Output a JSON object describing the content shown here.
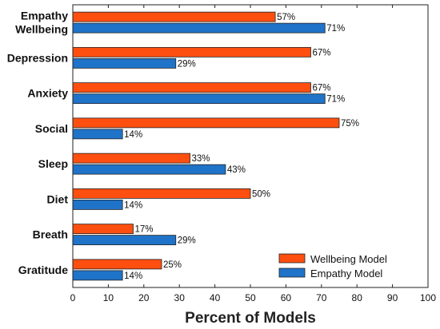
{
  "chart_data": {
    "type": "bar",
    "orientation": "horizontal",
    "categories": [
      [
        "Empathy",
        "Wellbeing"
      ],
      [
        "Depression"
      ],
      [
        "Anxiety"
      ],
      [
        "Social"
      ],
      [
        "Sleep"
      ],
      [
        "Diet"
      ],
      [
        "Breath"
      ],
      [
        "Gratitude"
      ]
    ],
    "series": [
      {
        "name": "Wellbeing Model",
        "color": "#ff4f10",
        "values": [
          57,
          67,
          67,
          75,
          33,
          50,
          17,
          25
        ],
        "labels": [
          "57%",
          "67%",
          "67%",
          "75%",
          "33%",
          "50%",
          "17%",
          "25%"
        ]
      },
      {
        "name": "Empathy Model",
        "color": "#1f73c8",
        "values": [
          71,
          29,
          71,
          14,
          43,
          14,
          29,
          14
        ],
        "labels": [
          "71%",
          "29%",
          "71%",
          "14%",
          "43%",
          "14%",
          "29%",
          "14%"
        ]
      }
    ],
    "xlabel": "Percent of Models",
    "ylabel": "",
    "xlim": [
      0,
      100
    ],
    "xticks": [
      0,
      10,
      20,
      30,
      40,
      50,
      60,
      70,
      80,
      90,
      100
    ],
    "grid": false,
    "legend": "bottom-right"
  }
}
